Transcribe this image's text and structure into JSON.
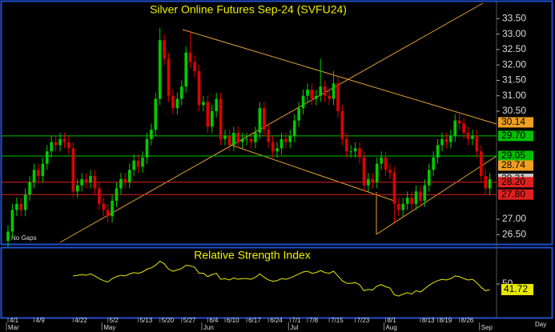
{
  "chart_data": [
    {
      "type": "candlestick",
      "title": "Silver Online Futures Sep-24 (SVFU24)",
      "annotation": "No Gaps",
      "x_label": "Day",
      "categories": [
        "4/1",
        null,
        null,
        null,
        null,
        null,
        "4/9",
        null,
        null,
        null,
        null,
        null,
        null,
        null,
        null,
        "4/22",
        null,
        null,
        null,
        null,
        null,
        null,
        null,
        "5/2",
        null,
        null,
        null,
        null,
        null,
        null,
        "5/13",
        null,
        null,
        null,
        null,
        "5/20",
        null,
        null,
        null,
        null,
        "5/27",
        null,
        null,
        null,
        null,
        null,
        "6/4",
        null,
        null,
        null,
        "6/10",
        null,
        null,
        null,
        null,
        "6/17",
        null,
        null,
        null,
        null,
        "6/24",
        null,
        null,
        null,
        null,
        "7/1",
        null,
        null,
        null,
        "7/8",
        null,
        null,
        null,
        null,
        "7/15",
        null,
        null,
        null,
        null,
        null,
        "7/23",
        null,
        null,
        null,
        null,
        null,
        null,
        "8/1",
        null,
        null,
        null,
        null,
        null,
        null,
        null,
        "8/13",
        null,
        null,
        null,
        "8/19",
        null,
        null,
        null,
        null,
        "8/26",
        null,
        null,
        null,
        null,
        null,
        null,
        null
      ],
      "months": [
        "Mar",
        null,
        null,
        null,
        null,
        null,
        null,
        null,
        null,
        null,
        null,
        null,
        null,
        null,
        null,
        null,
        null,
        null,
        null,
        null,
        null,
        null,
        "May",
        null,
        null,
        null,
        null,
        null,
        null,
        null,
        null,
        null,
        null,
        null,
        null,
        null,
        null,
        null,
        null,
        null,
        null,
        null,
        null,
        null,
        null,
        "Jun",
        null,
        null,
        null,
        null,
        null,
        null,
        null,
        null,
        null,
        null,
        null,
        null,
        null,
        null,
        null,
        null,
        null,
        null,
        null,
        "Jul",
        null,
        null,
        null,
        null,
        null,
        null,
        null,
        null,
        null,
        null,
        null,
        null,
        null,
        null,
        null,
        null,
        null,
        null,
        null,
        null,
        null,
        "Aug",
        null,
        null,
        null,
        null,
        null,
        null,
        null,
        null,
        null,
        null,
        null,
        null,
        null,
        null,
        null,
        null,
        null,
        null,
        null,
        null,
        null,
        "Sep",
        null,
        null
      ],
      "open": [
        26.3,
        26.6,
        27.3,
        27.5,
        27.3,
        27.8,
        28.2,
        28.6,
        28.4,
        28.8,
        29.2,
        29.5,
        29.4,
        29.6,
        29.5,
        29.3,
        27.9,
        28.1,
        28.3,
        28.2,
        28.4,
        28.0,
        27.5,
        27.3,
        27.1,
        27.6,
        28.0,
        28.3,
        28.2,
        28.6,
        28.9,
        28.7,
        29.0,
        29.6,
        29.9,
        30.9,
        32.8,
        32.2,
        31.0,
        30.6,
        30.9,
        31.3,
        32.4,
        32.1,
        31.8,
        30.7,
        30.8,
        30.0,
        30.5,
        30.9,
        29.6,
        29.7,
        29.4,
        29.8,
        29.5,
        29.6,
        29.6,
        29.5,
        29.8,
        30.6,
        29.9,
        29.5,
        29.2,
        29.3,
        29.6,
        29.5,
        29.7,
        30.2,
        30.6,
        31.0,
        31.2,
        30.9,
        31.0,
        31.3,
        31.0,
        30.9,
        31.4,
        30.5,
        29.6,
        29.2,
        29.2,
        29.3,
        29.0,
        28.1,
        28.3,
        28.2,
        28.8,
        29.0,
        28.6,
        28.5,
        27.5,
        27.3,
        27.5,
        27.7,
        27.5,
        27.9,
        27.6,
        28.1,
        28.6,
        29.0,
        29.4,
        29.6,
        29.5,
        29.7,
        30.2,
        30.1,
        29.8,
        29.6,
        29.7,
        29.2,
        28.4,
        28.0
      ],
      "high": [
        26.8,
        27.5,
        27.7,
        27.7,
        28.0,
        28.4,
        28.8,
        28.8,
        29.0,
        29.4,
        29.7,
        29.7,
        29.8,
        29.8,
        29.7,
        29.5,
        28.3,
        28.5,
        28.5,
        28.6,
        28.6,
        28.2,
        27.7,
        27.5,
        27.8,
        28.2,
        28.5,
        28.5,
        28.8,
        29.1,
        29.1,
        29.2,
        29.8,
        30.1,
        31.1,
        33.2,
        33.0,
        32.4,
        31.2,
        31.1,
        31.5,
        32.6,
        33.1,
        32.3,
        32.0,
        31.0,
        31.0,
        30.7,
        31.1,
        31.1,
        29.9,
        29.9,
        30.0,
        30.0,
        29.8,
        29.8,
        29.8,
        30.0,
        30.8,
        30.8,
        30.1,
        29.7,
        29.5,
        29.8,
        29.8,
        29.9,
        30.4,
        30.8,
        31.2,
        31.4,
        31.4,
        31.2,
        32.2,
        31.5,
        31.2,
        31.8,
        31.6,
        30.7,
        29.8,
        29.4,
        29.5,
        29.5,
        29.2,
        28.5,
        28.5,
        29.0,
        29.2,
        29.2,
        28.8,
        28.7,
        27.7,
        27.7,
        27.9,
        27.9,
        28.1,
        28.1,
        28.3,
        28.8,
        29.2,
        29.6,
        29.8,
        29.8,
        29.9,
        30.4,
        30.4,
        30.3,
        30.0,
        29.9,
        29.9,
        29.4,
        28.6,
        28.5
      ],
      "low": [
        26.1,
        26.4,
        27.1,
        27.1,
        27.1,
        27.6,
        28.0,
        28.2,
        28.2,
        28.6,
        29.0,
        29.2,
        29.2,
        29.3,
        29.1,
        27.7,
        27.7,
        27.9,
        28.0,
        28.0,
        27.8,
        27.3,
        27.1,
        26.9,
        26.9,
        27.4,
        27.8,
        28.0,
        28.0,
        28.4,
        28.5,
        28.5,
        28.8,
        29.4,
        29.7,
        30.7,
        32.0,
        30.8,
        30.4,
        30.4,
        30.7,
        31.1,
        31.9,
        31.6,
        30.5,
        30.5,
        29.8,
        29.8,
        30.3,
        29.4,
        29.4,
        29.2,
        29.2,
        29.3,
        29.3,
        29.4,
        29.3,
        29.3,
        29.6,
        29.7,
        29.3,
        29.0,
        29.0,
        29.1,
        29.3,
        29.3,
        29.5,
        30.0,
        30.4,
        30.8,
        30.7,
        30.7,
        30.8,
        30.8,
        30.7,
        30.7,
        30.3,
        29.4,
        29.0,
        29.0,
        29.0,
        28.8,
        27.9,
        27.9,
        28.0,
        28.0,
        28.6,
        28.4,
        28.3,
        26.9,
        27.1,
        27.1,
        27.3,
        27.3,
        27.3,
        27.4,
        27.4,
        27.9,
        28.4,
        28.8,
        29.2,
        29.3,
        29.3,
        29.5,
        29.9,
        29.6,
        29.4,
        29.4,
        29.0,
        28.2,
        27.8,
        27.8
      ],
      "close": [
        26.6,
        27.3,
        27.5,
        27.3,
        27.8,
        28.2,
        28.6,
        28.4,
        28.8,
        29.2,
        29.5,
        29.4,
        29.6,
        29.5,
        29.3,
        27.9,
        28.1,
        28.3,
        28.2,
        28.4,
        28.0,
        27.5,
        27.3,
        27.1,
        27.6,
        28.0,
        28.3,
        28.2,
        28.6,
        28.9,
        28.7,
        29.0,
        29.6,
        29.9,
        30.9,
        32.8,
        32.2,
        31.0,
        30.6,
        30.9,
        31.3,
        32.4,
        32.1,
        31.8,
        30.7,
        30.8,
        30.0,
        30.5,
        30.9,
        29.6,
        29.7,
        29.4,
        29.8,
        29.5,
        29.6,
        29.6,
        29.5,
        29.8,
        30.6,
        29.9,
        29.5,
        29.2,
        29.3,
        29.6,
        29.5,
        29.7,
        30.2,
        30.6,
        31.0,
        31.2,
        30.9,
        31.0,
        31.3,
        31.0,
        30.9,
        31.4,
        30.5,
        29.6,
        29.2,
        29.2,
        29.3,
        29.0,
        28.1,
        28.3,
        28.2,
        28.8,
        29.0,
        28.6,
        28.5,
        27.5,
        27.3,
        27.5,
        27.7,
        27.5,
        27.9,
        27.6,
        28.1,
        28.6,
        29.0,
        29.4,
        29.6,
        29.5,
        29.7,
        30.2,
        30.1,
        29.8,
        29.6,
        29.7,
        29.2,
        28.4,
        28.0,
        28.3
      ],
      "up_color": "#00cc00",
      "down_color": "#e00000",
      "ylim": [
        26.25,
        34.0
      ],
      "yticks": [
        {
          "value": 33.5,
          "label": "33.50"
        },
        {
          "value": 33.0,
          "label": "33.00"
        },
        {
          "value": 32.5,
          "label": "32.50"
        },
        {
          "value": 32.0,
          "label": "32.00"
        },
        {
          "value": 31.5,
          "label": "31.50"
        },
        {
          "value": 31.0,
          "label": "31.00"
        },
        {
          "value": 30.5,
          "label": "30.50"
        },
        {
          "value": 27.0,
          "label": "27.00"
        },
        {
          "value": 26.5,
          "label": "26.50"
        }
      ],
      "price_labels": [
        {
          "value": 30.14,
          "label": "30.14",
          "color": "#f0a020",
          "line": false
        },
        {
          "value": 29.7,
          "label": "29.70",
          "color": "#00c000",
          "line": true
        },
        {
          "value": 29.05,
          "label": "29.05",
          "color": "#00c000",
          "line": true
        },
        {
          "value": 28.74,
          "label": "28.74",
          "color": "#f0a020",
          "line": false
        },
        {
          "value": 28.31,
          "label": "28.31",
          "color": "#c8c8c8",
          "line": false
        },
        {
          "value": 28.2,
          "label": "28.20",
          "color": "#e02020",
          "line": true
        },
        {
          "value": 27.8,
          "label": "27.80",
          "color": "#e02020",
          "line": true
        }
      ]
    },
    {
      "type": "line",
      "title": "Relative Strength Index",
      "color": "#e8e800",
      "values": [
        null,
        null,
        null,
        null,
        null,
        null,
        null,
        null,
        null,
        null,
        null,
        null,
        null,
        null,
        null,
        62,
        63,
        64,
        63,
        65,
        62,
        58,
        55,
        53,
        58,
        61,
        63,
        62,
        65,
        67,
        66,
        68,
        72,
        74,
        78,
        84,
        80,
        72,
        69,
        71,
        73,
        78,
        77,
        75,
        66,
        66,
        61,
        64,
        66,
        57,
        58,
        56,
        59,
        57,
        58,
        58,
        57,
        60,
        65,
        60,
        56,
        54,
        55,
        58,
        57,
        59,
        62,
        65,
        68,
        69,
        66,
        67,
        70,
        67,
        66,
        69,
        62,
        55,
        51,
        51,
        52,
        49,
        40,
        42,
        41,
        47,
        49,
        46,
        44,
        34,
        32,
        35,
        37,
        35,
        40,
        38,
        43,
        48,
        52,
        55,
        57,
        56,
        58,
        62,
        61,
        58,
        56,
        57,
        52,
        45,
        40,
        41.72
      ],
      "ylim": [
        0,
        100
      ],
      "yticks": [
        50
      ]
    }
  ]
}
